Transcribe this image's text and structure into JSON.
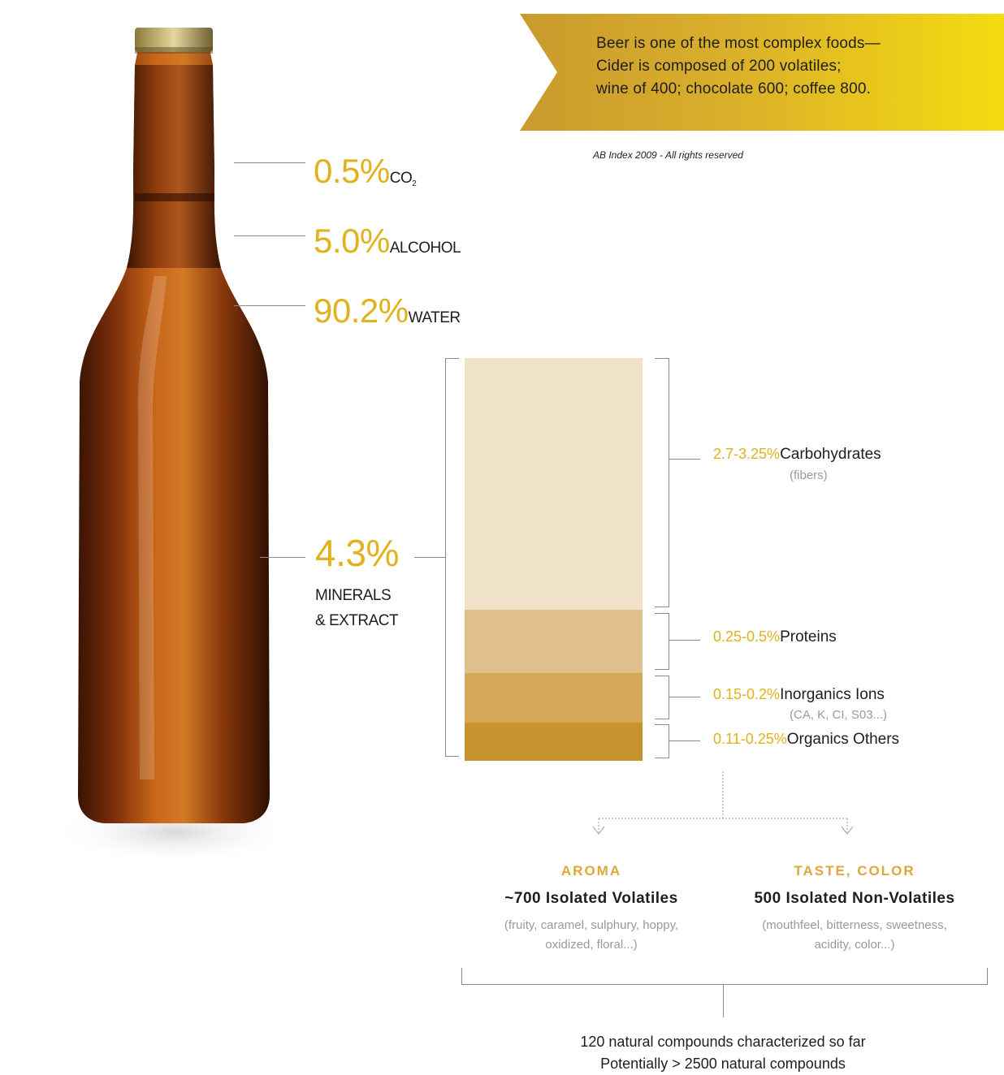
{
  "banner": {
    "lines": [
      "Beer is one of the most complex foods—",
      "Cider is composed of 200 volatiles;",
      "wine of 400; chocolate 600; coffee 800."
    ],
    "color_start": "#c99a2e",
    "color_end": "#f4dc10"
  },
  "credit": "AB Index 2009 - All rights reserved",
  "composition": [
    {
      "value": "0.5%",
      "label": "CO",
      "subscript": "2"
    },
    {
      "value": "5.0%",
      "label": "ALCOHOL"
    },
    {
      "value": "90.2%",
      "label": "WATER"
    },
    {
      "value": "4.3%",
      "label_lines": [
        "MINERALS",
        "& EXTRACT"
      ]
    }
  ],
  "extract": [
    {
      "range": "2.7-3.25%",
      "name": "Carbohydrates",
      "note": "(fibers)",
      "color": "#efe2c8"
    },
    {
      "range": "0.25-0.5%",
      "name": "Proteins",
      "note": "",
      "color": "#dfbf8b"
    },
    {
      "range": "0.15-0.2%",
      "name": "Inorganics Ions",
      "note": "(CA, K, CI, S03...)",
      "color": "#d5a858"
    },
    {
      "range": "0.11-0.25%",
      "name": "Organics Others",
      "note": "",
      "color": "#c8922e"
    }
  ],
  "aroma": {
    "category": "AROMA",
    "count": "~700 Isolated Volatiles",
    "desc_lines": [
      "(fruity, caramel, sulphury, hoppy,",
      "oxidized, floral...)"
    ]
  },
  "taste": {
    "category": "TASTE, COLOR",
    "count": "500 Isolated Non-Volatiles",
    "desc_lines": [
      "(mouthfeel, bitterness, sweetness,",
      "acidity, color...)"
    ]
  },
  "footer": {
    "lines": [
      "120 natural compounds characterized so far",
      "Potentially > 2500 natural compounds"
    ]
  },
  "accent_color": "#e0b21f"
}
